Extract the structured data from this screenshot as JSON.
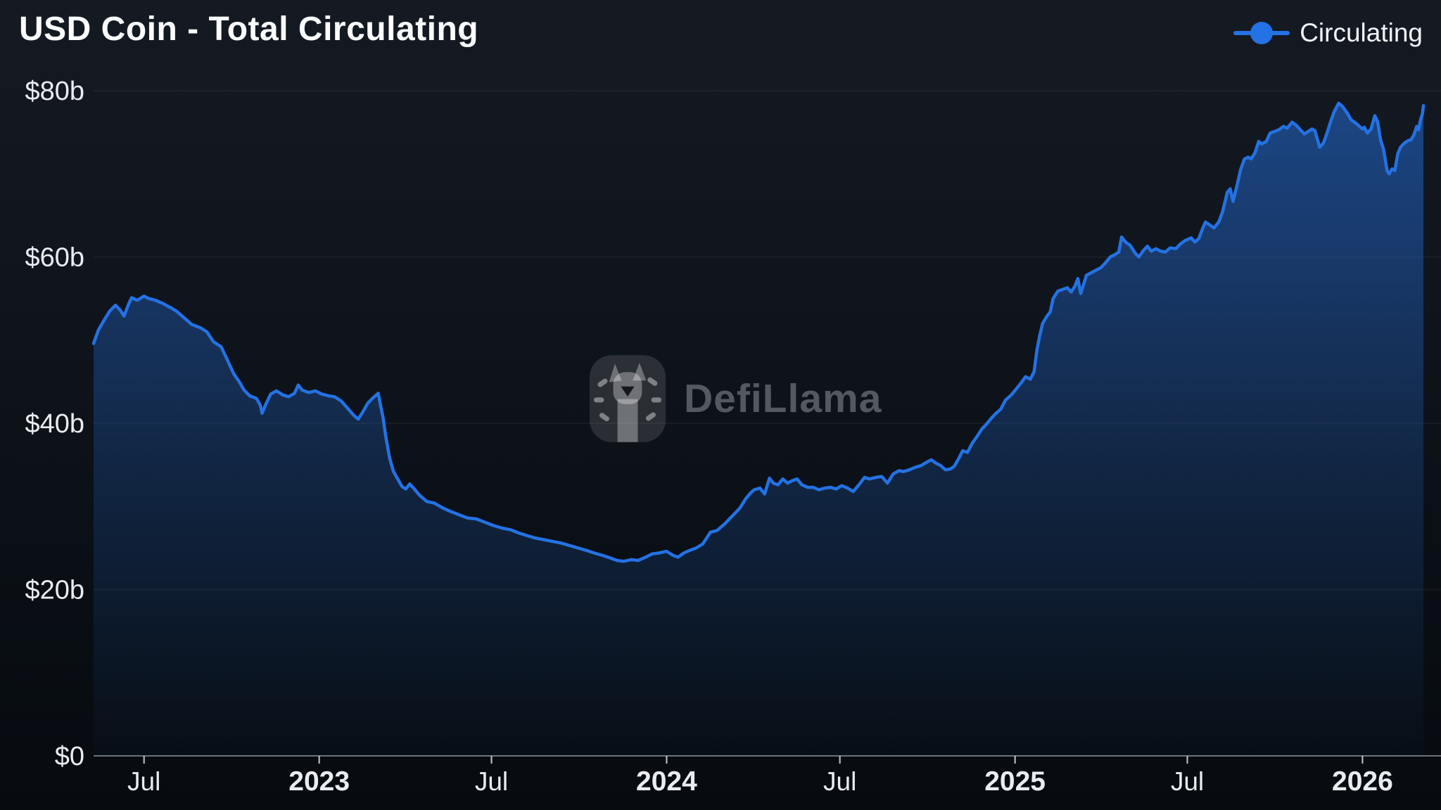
{
  "header": {
    "title": "USD Coin - Total Circulating"
  },
  "legend": {
    "items": [
      {
        "label": "Circulating",
        "color": "#2472E4"
      }
    ]
  },
  "watermark": {
    "text": "DefiLlama"
  },
  "colors": {
    "accent": "#2472E4",
    "background_top": "#151a22",
    "background_bottom": "#070b10",
    "grid": "rgba(255,255,255,0.06)",
    "axis_line": "#6d737b",
    "tick_mark": "#c3c9cf",
    "label": "#e9ecf0"
  },
  "chart_data": {
    "type": "area",
    "title": "USD Coin - Total Circulating",
    "xlabel": "",
    "ylabel": "",
    "unit": "USD billions",
    "ylim": [
      0,
      80
    ],
    "grid": true,
    "legend_position": "top-right",
    "x_range": [
      "2022-05-09",
      "2026-03-06"
    ],
    "y_ticks": [
      {
        "v": 0,
        "label": "$0"
      },
      {
        "v": 20,
        "label": "$20b"
      },
      {
        "v": 40,
        "label": "$40b"
      },
      {
        "v": 60,
        "label": "$60b"
      },
      {
        "v": 80,
        "label": "$80b"
      }
    ],
    "x_ticks": [
      {
        "date": "2022-07-01",
        "label": "Jul",
        "bold": false
      },
      {
        "date": "2023-01-01",
        "label": "2023",
        "bold": true
      },
      {
        "date": "2023-07-01",
        "label": "Jul",
        "bold": false
      },
      {
        "date": "2024-01-01",
        "label": "2024",
        "bold": true
      },
      {
        "date": "2024-07-01",
        "label": "Jul",
        "bold": false
      },
      {
        "date": "2025-01-01",
        "label": "2025",
        "bold": true
      },
      {
        "date": "2025-07-01",
        "label": "Jul",
        "bold": false
      },
      {
        "date": "2026-01-01",
        "label": "2026",
        "bold": true
      }
    ],
    "series": [
      {
        "name": "Circulating",
        "color": "#2472E4",
        "points": [
          [
            "2022-05-09",
            49.6
          ],
          [
            "2022-05-14",
            51.2
          ],
          [
            "2022-05-20",
            52.4
          ],
          [
            "2022-05-26",
            53.5
          ],
          [
            "2022-06-01",
            54.2
          ],
          [
            "2022-06-06",
            53.6
          ],
          [
            "2022-06-10",
            52.9
          ],
          [
            "2022-06-15",
            54.4
          ],
          [
            "2022-06-18",
            55.1
          ],
          [
            "2022-06-24",
            54.8
          ],
          [
            "2022-07-01",
            55.3
          ],
          [
            "2022-07-06",
            55.0
          ],
          [
            "2022-07-13",
            54.8
          ],
          [
            "2022-07-21",
            54.4
          ],
          [
            "2022-07-29",
            53.9
          ],
          [
            "2022-08-04",
            53.5
          ],
          [
            "2022-08-12",
            52.7
          ],
          [
            "2022-08-20",
            51.9
          ],
          [
            "2022-08-29",
            51.5
          ],
          [
            "2022-09-05",
            51.0
          ],
          [
            "2022-09-12",
            49.8
          ],
          [
            "2022-09-20",
            49.2
          ],
          [
            "2022-09-27",
            47.5
          ],
          [
            "2022-10-03",
            46.0
          ],
          [
            "2022-10-09",
            45.0
          ],
          [
            "2022-10-14",
            44.0
          ],
          [
            "2022-10-20",
            43.3
          ],
          [
            "2022-10-27",
            43.0
          ],
          [
            "2022-10-31",
            42.2
          ],
          [
            "2022-11-02",
            41.2
          ],
          [
            "2022-11-06",
            42.3
          ],
          [
            "2022-11-11",
            43.5
          ],
          [
            "2022-11-17",
            43.9
          ],
          [
            "2022-11-24",
            43.4
          ],
          [
            "2022-11-30",
            43.2
          ],
          [
            "2022-12-06",
            43.6
          ],
          [
            "2022-12-10",
            44.6
          ],
          [
            "2022-12-14",
            44.0
          ],
          [
            "2022-12-21",
            43.7
          ],
          [
            "2022-12-28",
            43.9
          ],
          [
            "2023-01-04",
            43.5
          ],
          [
            "2023-01-11",
            43.3
          ],
          [
            "2023-01-17",
            43.2
          ],
          [
            "2023-01-24",
            42.7
          ],
          [
            "2023-01-31",
            41.8
          ],
          [
            "2023-02-06",
            41.0
          ],
          [
            "2023-02-11",
            40.5
          ],
          [
            "2023-02-16",
            41.4
          ],
          [
            "2023-02-21",
            42.4
          ],
          [
            "2023-02-26",
            43.0
          ],
          [
            "2023-03-04",
            43.6
          ],
          [
            "2023-03-09",
            40.7
          ],
          [
            "2023-03-12",
            38.4
          ],
          [
            "2023-03-16",
            35.8
          ],
          [
            "2023-03-20",
            34.2
          ],
          [
            "2023-03-25",
            33.2
          ],
          [
            "2023-03-29",
            32.4
          ],
          [
            "2023-04-02",
            32.1
          ],
          [
            "2023-04-06",
            32.7
          ],
          [
            "2023-04-11",
            32.1
          ],
          [
            "2023-04-16",
            31.4
          ],
          [
            "2023-04-24",
            30.6
          ],
          [
            "2023-05-02",
            30.4
          ],
          [
            "2023-05-11",
            29.8
          ],
          [
            "2023-05-19",
            29.4
          ],
          [
            "2023-05-28",
            29.0
          ],
          [
            "2023-06-06",
            28.6
          ],
          [
            "2023-06-15",
            28.5
          ],
          [
            "2023-06-24",
            28.1
          ],
          [
            "2023-07-03",
            27.7
          ],
          [
            "2023-07-12",
            27.4
          ],
          [
            "2023-07-21",
            27.2
          ],
          [
            "2023-07-30",
            26.8
          ],
          [
            "2023-08-07",
            26.5
          ],
          [
            "2023-08-16",
            26.2
          ],
          [
            "2023-08-25",
            26.0
          ],
          [
            "2023-09-03",
            25.8
          ],
          [
            "2023-09-12",
            25.6
          ],
          [
            "2023-09-21",
            25.3
          ],
          [
            "2023-09-30",
            25.0
          ],
          [
            "2023-10-09",
            24.7
          ],
          [
            "2023-10-17",
            24.4
          ],
          [
            "2023-10-26",
            24.1
          ],
          [
            "2023-11-03",
            23.8
          ],
          [
            "2023-11-10",
            23.5
          ],
          [
            "2023-11-17",
            23.4
          ],
          [
            "2023-11-25",
            23.6
          ],
          [
            "2023-12-02",
            23.5
          ],
          [
            "2023-12-10",
            23.9
          ],
          [
            "2023-12-17",
            24.3
          ],
          [
            "2023-12-24",
            24.4
          ],
          [
            "2024-01-01",
            24.6
          ],
          [
            "2024-01-08",
            24.1
          ],
          [
            "2024-01-13",
            23.9
          ],
          [
            "2024-01-19",
            24.4
          ],
          [
            "2024-01-25",
            24.7
          ],
          [
            "2024-02-01",
            25.0
          ],
          [
            "2024-02-08",
            25.5
          ],
          [
            "2024-02-16",
            26.9
          ],
          [
            "2024-02-23",
            27.1
          ],
          [
            "2024-02-28",
            27.6
          ],
          [
            "2024-03-02",
            27.9
          ],
          [
            "2024-03-07",
            28.5
          ],
          [
            "2024-03-13",
            29.2
          ],
          [
            "2024-03-18",
            29.8
          ],
          [
            "2024-03-24",
            30.9
          ],
          [
            "2024-03-29",
            31.6
          ],
          [
            "2024-04-02",
            32.0
          ],
          [
            "2024-04-08",
            32.2
          ],
          [
            "2024-04-13",
            31.5
          ],
          [
            "2024-04-18",
            33.4
          ],
          [
            "2024-04-22",
            32.8
          ],
          [
            "2024-04-27",
            32.6
          ],
          [
            "2024-05-02",
            33.3
          ],
          [
            "2024-05-07",
            32.8
          ],
          [
            "2024-05-12",
            33.1
          ],
          [
            "2024-05-17",
            33.3
          ],
          [
            "2024-05-22",
            32.6
          ],
          [
            "2024-05-28",
            32.3
          ],
          [
            "2024-06-03",
            32.3
          ],
          [
            "2024-06-09",
            32.0
          ],
          [
            "2024-06-15",
            32.2
          ],
          [
            "2024-06-21",
            32.3
          ],
          [
            "2024-06-27",
            32.1
          ],
          [
            "2024-07-03",
            32.5
          ],
          [
            "2024-07-09",
            32.2
          ],
          [
            "2024-07-15",
            31.8
          ],
          [
            "2024-07-21",
            32.6
          ],
          [
            "2024-07-27",
            33.5
          ],
          [
            "2024-08-01",
            33.3
          ],
          [
            "2024-08-08",
            33.5
          ],
          [
            "2024-08-14",
            33.6
          ],
          [
            "2024-08-20",
            32.8
          ],
          [
            "2024-08-26",
            33.9
          ],
          [
            "2024-09-01",
            34.3
          ],
          [
            "2024-09-06",
            34.2
          ],
          [
            "2024-09-12",
            34.4
          ],
          [
            "2024-09-18",
            34.7
          ],
          [
            "2024-09-24",
            34.9
          ],
          [
            "2024-09-30",
            35.3
          ],
          [
            "2024-10-05",
            35.6
          ],
          [
            "2024-10-10",
            35.2
          ],
          [
            "2024-10-15",
            34.9
          ],
          [
            "2024-10-20",
            34.4
          ],
          [
            "2024-10-25",
            34.5
          ],
          [
            "2024-10-29",
            34.8
          ],
          [
            "2024-11-03",
            35.8
          ],
          [
            "2024-11-07",
            36.7
          ],
          [
            "2024-11-12",
            36.5
          ],
          [
            "2024-11-17",
            37.6
          ],
          [
            "2024-11-22",
            38.4
          ],
          [
            "2024-11-27",
            39.3
          ],
          [
            "2024-12-02",
            39.9
          ],
          [
            "2024-12-07",
            40.6
          ],
          [
            "2024-12-12",
            41.2
          ],
          [
            "2024-12-17",
            41.7
          ],
          [
            "2024-12-22",
            42.8
          ],
          [
            "2024-12-28",
            43.4
          ],
          [
            "2025-01-02",
            44.1
          ],
          [
            "2025-01-07",
            44.8
          ],
          [
            "2025-01-12",
            45.6
          ],
          [
            "2025-01-17",
            45.3
          ],
          [
            "2025-01-21",
            46.2
          ],
          [
            "2025-01-24",
            48.8
          ],
          [
            "2025-01-27",
            50.6
          ],
          [
            "2025-01-30",
            52.0
          ],
          [
            "2025-02-03",
            52.8
          ],
          [
            "2025-02-07",
            53.4
          ],
          [
            "2025-02-10",
            55.0
          ],
          [
            "2025-02-15",
            55.9
          ],
          [
            "2025-02-20",
            56.1
          ],
          [
            "2025-02-25",
            56.3
          ],
          [
            "2025-03-01",
            55.8
          ],
          [
            "2025-03-05",
            56.5
          ],
          [
            "2025-03-08",
            57.4
          ],
          [
            "2025-03-11",
            55.6
          ],
          [
            "2025-03-17",
            57.8
          ],
          [
            "2025-03-22",
            58.1
          ],
          [
            "2025-03-27",
            58.4
          ],
          [
            "2025-04-01",
            58.7
          ],
          [
            "2025-04-06",
            59.3
          ],
          [
            "2025-04-11",
            60.0
          ],
          [
            "2025-04-16",
            60.3
          ],
          [
            "2025-04-20",
            60.6
          ],
          [
            "2025-04-23",
            62.4
          ],
          [
            "2025-04-27",
            61.8
          ],
          [
            "2025-05-02",
            61.4
          ],
          [
            "2025-05-07",
            60.5
          ],
          [
            "2025-05-11",
            60.0
          ],
          [
            "2025-05-16",
            60.8
          ],
          [
            "2025-05-20",
            61.3
          ],
          [
            "2025-05-24",
            60.7
          ],
          [
            "2025-05-29",
            61.0
          ],
          [
            "2025-06-03",
            60.7
          ],
          [
            "2025-06-08",
            60.6
          ],
          [
            "2025-06-13",
            61.1
          ],
          [
            "2025-06-19",
            61.0
          ],
          [
            "2025-06-24",
            61.6
          ],
          [
            "2025-06-29",
            62.0
          ],
          [
            "2025-07-05",
            62.3
          ],
          [
            "2025-07-09",
            61.8
          ],
          [
            "2025-07-13",
            62.2
          ],
          [
            "2025-07-17",
            63.4
          ],
          [
            "2025-07-20",
            64.2
          ],
          [
            "2025-07-24",
            63.9
          ],
          [
            "2025-07-29",
            63.5
          ],
          [
            "2025-08-03",
            64.2
          ],
          [
            "2025-08-07",
            65.4
          ],
          [
            "2025-08-12",
            67.8
          ],
          [
            "2025-08-15",
            68.2
          ],
          [
            "2025-08-18",
            66.7
          ],
          [
            "2025-08-22",
            68.5
          ],
          [
            "2025-08-26",
            70.5
          ],
          [
            "2025-08-30",
            71.8
          ],
          [
            "2025-09-03",
            72.0
          ],
          [
            "2025-09-06",
            71.8
          ],
          [
            "2025-09-10",
            72.5
          ],
          [
            "2025-09-14",
            73.9
          ],
          [
            "2025-09-17",
            73.6
          ],
          [
            "2025-09-22",
            73.9
          ],
          [
            "2025-09-26",
            74.9
          ],
          [
            "2025-10-01",
            75.1
          ],
          [
            "2025-10-05",
            75.3
          ],
          [
            "2025-10-10",
            75.7
          ],
          [
            "2025-10-14",
            75.5
          ],
          [
            "2025-10-19",
            76.2
          ],
          [
            "2025-10-23",
            75.9
          ],
          [
            "2025-10-27",
            75.4
          ],
          [
            "2025-11-01",
            74.8
          ],
          [
            "2025-11-05",
            75.1
          ],
          [
            "2025-11-09",
            75.4
          ],
          [
            "2025-11-12",
            75.2
          ],
          [
            "2025-11-17",
            73.2
          ],
          [
            "2025-11-21",
            73.7
          ],
          [
            "2025-11-25",
            75.0
          ],
          [
            "2025-11-28",
            76.1
          ],
          [
            "2025-12-02",
            77.4
          ],
          [
            "2025-12-07",
            78.5
          ],
          [
            "2025-12-11",
            78.1
          ],
          [
            "2025-12-16",
            77.3
          ],
          [
            "2025-12-20",
            76.5
          ],
          [
            "2025-12-25",
            76.1
          ],
          [
            "2026-01-01",
            75.4
          ],
          [
            "2026-01-03",
            75.6
          ],
          [
            "2026-01-06",
            74.9
          ],
          [
            "2026-01-10",
            75.4
          ],
          [
            "2026-01-14",
            77.0
          ],
          [
            "2026-01-17",
            76.2
          ],
          [
            "2026-01-20",
            74.1
          ],
          [
            "2026-01-23",
            73.0
          ],
          [
            "2026-01-27",
            70.3
          ],
          [
            "2026-01-29",
            70.0
          ],
          [
            "2026-02-01",
            70.6
          ],
          [
            "2026-02-04",
            70.4
          ],
          [
            "2026-02-07",
            72.4
          ],
          [
            "2026-02-10",
            73.2
          ],
          [
            "2026-02-14",
            73.7
          ],
          [
            "2026-02-18",
            74.0
          ],
          [
            "2026-02-21",
            74.1
          ],
          [
            "2026-02-24",
            74.7
          ],
          [
            "2026-02-27",
            75.7
          ],
          [
            "2026-03-01",
            75.3
          ],
          [
            "2026-03-03",
            76.5
          ],
          [
            "2026-03-05",
            77.2
          ],
          [
            "2026-03-06",
            78.2
          ]
        ]
      }
    ]
  }
}
